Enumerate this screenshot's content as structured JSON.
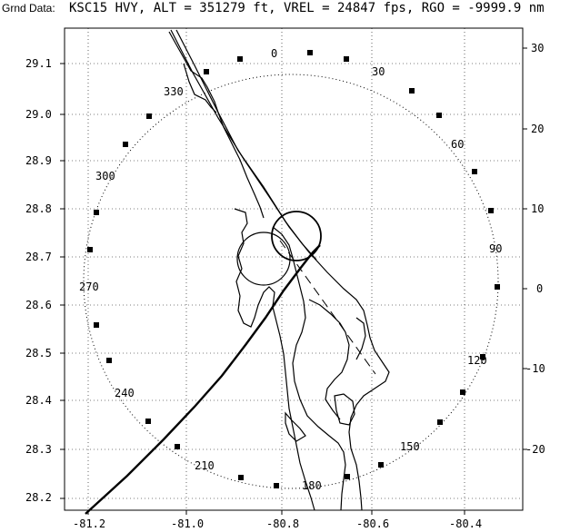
{
  "header": {
    "label": "Grnd Data:",
    "text": "KSC15 HVY, ALT = 351279 ft, VREL = 24847 fps, RGO = -9999.9 nm"
  },
  "map": {
    "colors": {
      "background": "#ffffff",
      "ink": "#000000",
      "grid": "#000000"
    },
    "x_axis": {
      "min": -81.22,
      "max": -80.33,
      "ticks": [
        "-81.2",
        "-81.0",
        "-80.8",
        "-80.6",
        "-80.4"
      ]
    },
    "y_axis_left": {
      "min": 28.18,
      "max": 29.17,
      "ticks": [
        "28.2",
        "28.3",
        "28.4",
        "28.5",
        "28.6",
        "28.7",
        "28.8",
        "28.9",
        "29.0",
        "29.1"
      ]
    },
    "y_axis_right": {
      "ticks": [
        "30",
        "20",
        "10",
        "0",
        "-10",
        "-20"
      ]
    },
    "range_ring_bearings": [
      "0",
      "30",
      "60",
      "90",
      "120",
      "150",
      "180",
      "210",
      "240",
      "270",
      "300",
      "330"
    ]
  }
}
